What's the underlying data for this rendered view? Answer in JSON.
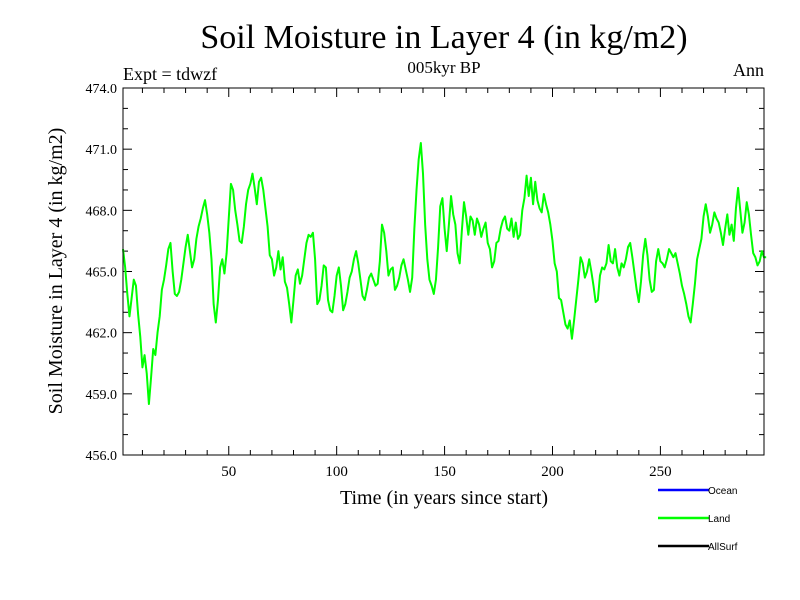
{
  "chart_data": {
    "type": "line",
    "title": "Soil Moisture in Layer 4 (in kg/m2)",
    "subtitle": "005kyr BP",
    "left_label": "Expt = tdwzf",
    "right_label": "Ann",
    "xlabel": "Time (in years since start)",
    "ylabel": "Soil Moisture in Layer 4 (in kg/m2)",
    "xlim": [
      1,
      298
    ],
    "ylim": [
      456.0,
      474.0
    ],
    "x_ticks": [
      50,
      100,
      150,
      200,
      250
    ],
    "y_ticks": [
      "456.0",
      "459.0",
      "462.0",
      "465.0",
      "468.0",
      "471.0",
      "474.0"
    ],
    "legend": [
      {
        "name": "Ocean",
        "color": "#0000ff"
      },
      {
        "name": "Land",
        "color": "#00ff00"
      },
      {
        "name": "AllSurf",
        "color": "#000000"
      }
    ],
    "series": [
      {
        "name": "Land",
        "color": "#00ff00",
        "x_start": 1,
        "x_step": 1,
        "values": [
          466.1,
          465.2,
          463.9,
          462.8,
          463.7,
          464.6,
          464.3,
          462.9,
          461.8,
          460.3,
          460.9,
          460.0,
          458.5,
          459.8,
          461.2,
          460.9,
          462.0,
          462.8,
          464.1,
          464.6,
          465.3,
          466.1,
          466.4,
          465.0,
          463.9,
          463.8,
          464.0,
          464.6,
          465.4,
          466.2,
          466.8,
          466.0,
          465.2,
          465.6,
          466.6,
          467.2,
          467.6,
          468.1,
          468.5,
          467.8,
          466.9,
          465.6,
          463.4,
          462.5,
          463.6,
          465.2,
          465.6,
          464.9,
          465.9,
          467.6,
          469.3,
          469.0,
          468.0,
          467.3,
          466.5,
          466.4,
          467.2,
          468.3,
          469.0,
          469.3,
          469.8,
          469.1,
          468.3,
          469.4,
          469.6,
          469.0,
          468.1,
          467.2,
          465.8,
          465.6,
          464.8,
          465.2,
          466.0,
          465.1,
          465.7,
          464.5,
          464.2,
          463.4,
          462.5,
          463.6,
          464.8,
          465.1,
          464.4,
          464.8,
          465.6,
          466.4,
          466.8,
          466.7,
          466.9,
          465.6,
          463.4,
          463.6,
          464.3,
          465.3,
          465.2,
          463.6,
          463.1,
          463.0,
          463.8,
          464.8,
          465.2,
          464.3,
          463.1,
          463.4,
          464.0,
          464.7,
          465.0,
          465.6,
          466.0,
          465.4,
          464.6,
          463.8,
          463.6,
          464.1,
          464.7,
          464.9,
          464.6,
          464.3,
          464.4,
          465.5,
          467.3,
          466.9,
          466.0,
          464.8,
          465.1,
          465.2,
          464.1,
          464.3,
          464.7,
          465.3,
          465.6,
          465.1,
          464.6,
          464.0,
          464.7,
          467.1,
          469.0,
          470.5,
          471.3,
          469.8,
          467.3,
          465.6,
          464.6,
          464.3,
          463.9,
          464.6,
          466.2,
          468.2,
          468.6,
          467.1,
          466.0,
          467.3,
          468.7,
          467.8,
          467.3,
          465.9,
          465.4,
          467.0,
          468.4,
          467.7,
          466.8,
          467.7,
          467.5,
          466.8,
          467.6,
          467.3,
          466.7,
          467.1,
          467.4,
          466.4,
          466.1,
          465.2,
          465.5,
          466.4,
          466.5,
          467.1,
          467.5,
          467.7,
          467.1,
          467.0,
          467.6,
          466.7,
          467.4,
          466.6,
          466.8,
          468.0,
          468.6,
          469.7,
          468.7,
          469.6,
          468.3,
          469.4,
          468.5,
          468.1,
          467.9,
          468.8,
          468.3,
          467.9,
          467.3,
          466.5,
          465.4,
          465.0,
          463.7,
          463.6,
          463.0,
          462.4,
          462.2,
          462.6,
          461.7,
          462.6,
          463.6,
          464.6,
          465.7,
          465.4,
          464.7,
          465.0,
          465.6,
          465.0,
          464.3,
          463.5,
          463.6,
          464.8,
          465.2,
          465.1,
          465.4,
          466.3,
          465.5,
          465.4,
          466.1,
          465.2,
          464.8,
          465.4,
          465.2,
          465.6,
          466.2,
          466.4,
          465.7,
          464.9,
          464.1,
          463.5,
          464.5,
          465.8,
          466.6,
          465.8,
          464.6,
          464.0,
          464.1,
          465.5,
          466.1,
          465.5,
          465.4,
          465.2,
          465.6,
          466.1,
          465.9,
          465.7,
          465.9,
          465.4,
          464.9,
          464.3,
          463.9,
          463.4,
          462.8,
          462.5,
          463.4,
          464.4,
          465.6,
          466.1,
          466.6,
          467.7,
          468.3,
          467.7,
          466.9,
          467.3,
          467.9,
          467.6,
          467.4,
          466.9,
          466.3,
          467.1,
          467.8,
          466.8,
          467.3,
          466.5,
          468.1,
          469.1,
          468.0,
          466.9,
          467.4,
          468.4,
          467.8,
          466.8,
          465.9,
          465.7,
          465.3,
          465.5,
          466.0,
          465.7,
          465.7
        ]
      }
    ]
  }
}
